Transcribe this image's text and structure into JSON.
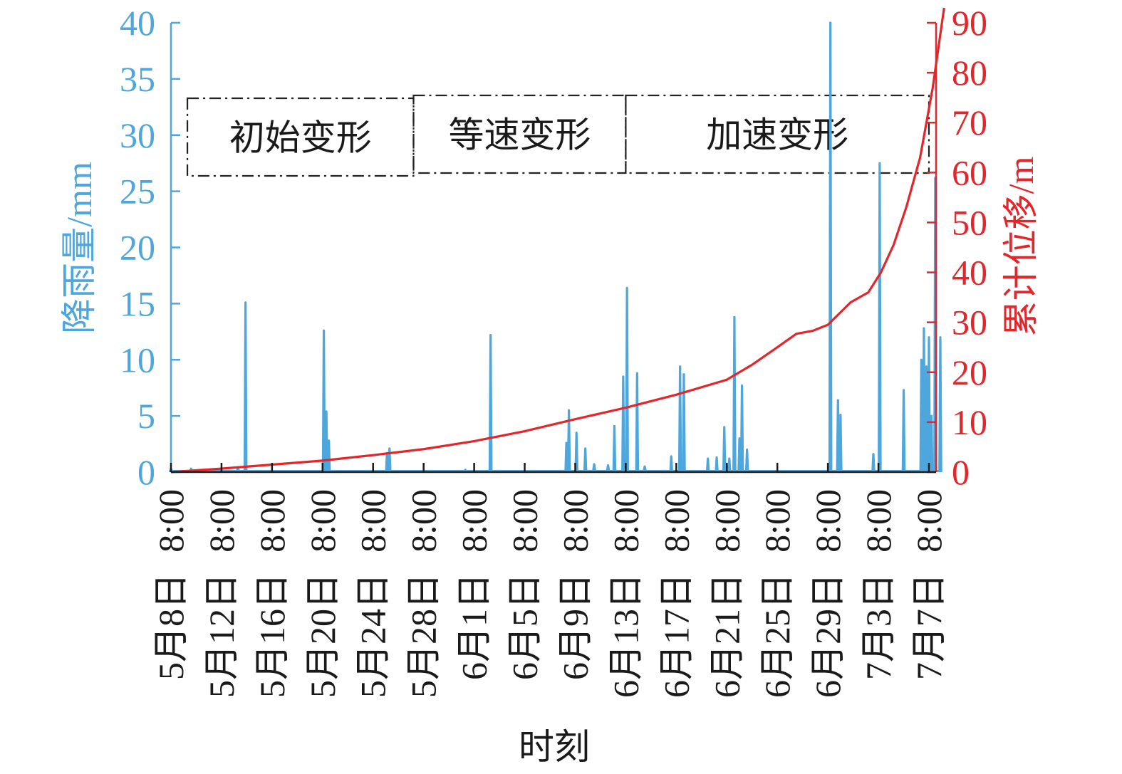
{
  "chart_data": {
    "type": "bar+line",
    "xlabel": "时刻",
    "ylabel_left": "降雨量/mm",
    "ylabel_right": "累计位移/m",
    "ylim_left": [
      0,
      40
    ],
    "ylim_right": [
      0,
      90
    ],
    "yticks_left": [
      "0",
      "5",
      "10",
      "15",
      "20",
      "25",
      "30",
      "35",
      "40"
    ],
    "yticks_right": [
      "0",
      "10",
      "20",
      "30",
      "40",
      "50",
      "60",
      "70",
      "80",
      "90"
    ],
    "x_range_days": [
      0,
      60
    ],
    "x_ticks": [
      {
        "day": 0,
        "date": "5月8日",
        "time": "8:00"
      },
      {
        "day": 4,
        "date": "5月12日",
        "time": "8:00"
      },
      {
        "day": 8,
        "date": "5月16日",
        "time": "8:00"
      },
      {
        "day": 12,
        "date": "5月20日",
        "time": "8:00"
      },
      {
        "day": 16,
        "date": "5月24日",
        "time": "8:00"
      },
      {
        "day": 20,
        "date": "5月28日",
        "time": "8:00"
      },
      {
        "day": 24,
        "date": "6月1日",
        "time": "8:00"
      },
      {
        "day": 28,
        "date": "6月5日",
        "time": "8:00"
      },
      {
        "day": 32,
        "date": "6月9日",
        "time": "8:00"
      },
      {
        "day": 36,
        "date": "6月13日",
        "time": "8:00"
      },
      {
        "day": 40,
        "date": "6月17日",
        "time": "8:00"
      },
      {
        "day": 44,
        "date": "6月21日",
        "time": "8:00"
      },
      {
        "day": 48,
        "date": "6月25日",
        "time": "8:00"
      },
      {
        "day": 52,
        "date": "6月29日",
        "time": "8:00"
      },
      {
        "day": 56,
        "date": "7月3日",
        "time": "8:00"
      },
      {
        "day": 60,
        "date": "7月7日",
        "time": "8:00"
      }
    ],
    "phases": [
      {
        "label": "初始变形",
        "start_day": 1.3,
        "end_day": 19.2
      },
      {
        "label": "等速变形",
        "start_day": 19.2,
        "end_day": 36
      },
      {
        "label": "加速变形",
        "start_day": 36,
        "end_day": 60
      }
    ],
    "series": [
      {
        "name": "降雨量",
        "axis": "left",
        "unit": "mm",
        "color": "#4ea7dc",
        "points": [
          [
            0,
            0.3
          ],
          [
            1.6,
            0.3
          ],
          [
            5.3,
            0.4
          ],
          [
            5.9,
            15.1
          ],
          [
            12.1,
            12.6
          ],
          [
            12.3,
            5.4
          ],
          [
            12.5,
            2.8
          ],
          [
            17.1,
            1.7
          ],
          [
            17.3,
            2.1
          ],
          [
            23.3,
            0.2
          ],
          [
            25.3,
            12.2
          ],
          [
            31.3,
            2.6
          ],
          [
            31.5,
            5.5
          ],
          [
            32.1,
            3.5
          ],
          [
            32.8,
            2.1
          ],
          [
            33.5,
            0.7
          ],
          [
            34.6,
            0.6
          ],
          [
            35.1,
            4.1
          ],
          [
            35.8,
            8.5
          ],
          [
            36.1,
            16.4
          ],
          [
            36.9,
            8.8
          ],
          [
            37.5,
            0.5
          ],
          [
            39.6,
            1.4
          ],
          [
            40.3,
            9.4
          ],
          [
            40.6,
            8.7
          ],
          [
            42.5,
            1.2
          ],
          [
            43.2,
            1.3
          ],
          [
            43.8,
            4.0
          ],
          [
            44.2,
            1.2
          ],
          [
            44.6,
            13.8
          ],
          [
            45.0,
            3.0
          ],
          [
            45.2,
            7.7
          ],
          [
            45.6,
            2.0
          ],
          [
            52.2,
            40.0
          ],
          [
            52.8,
            6.4
          ],
          [
            53.0,
            5.1
          ],
          [
            55.6,
            1.6
          ],
          [
            56.1,
            27.5
          ],
          [
            58.0,
            7.3
          ],
          [
            59.4,
            10.0
          ],
          [
            59.6,
            12.8
          ],
          [
            59.8,
            9.4
          ],
          [
            60.0,
            12.0
          ],
          [
            60.2,
            5.0
          ],
          [
            60.5,
            26.2
          ],
          [
            60.9,
            12.0
          ]
        ]
      },
      {
        "name": "累计位移",
        "axis": "right",
        "unit": "m",
        "color": "#e3262b",
        "points": [
          [
            0,
            0
          ],
          [
            4,
            0.7
          ],
          [
            8,
            1.5
          ],
          [
            12,
            2.3
          ],
          [
            16,
            3.4
          ],
          [
            20,
            4.6
          ],
          [
            24,
            6.2
          ],
          [
            28,
            8.2
          ],
          [
            32,
            10.6
          ],
          [
            36,
            12.9
          ],
          [
            40,
            15.5
          ],
          [
            44,
            18.5
          ],
          [
            46,
            21.5
          ],
          [
            48,
            25.0
          ],
          [
            49.5,
            27.7
          ],
          [
            50.8,
            28.3
          ],
          [
            52,
            29.5
          ],
          [
            53.8,
            34.0
          ],
          [
            55.2,
            36.0
          ],
          [
            56.2,
            40.0
          ],
          [
            57.2,
            45.5
          ],
          [
            58.2,
            53.0
          ],
          [
            59.3,
            63.0
          ],
          [
            60.3,
            77.0
          ],
          [
            61.2,
            93.0
          ]
        ]
      }
    ]
  }
}
